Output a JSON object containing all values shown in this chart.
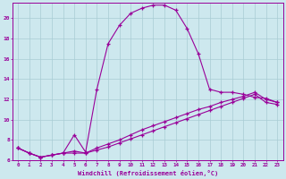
{
  "xlabel": "Windchill (Refroidissement éolien,°C)",
  "bg_color": "#cde8ee",
  "grid_color": "#a8ccd4",
  "line_color": "#990099",
  "xlim": [
    -0.5,
    23.5
  ],
  "ylim": [
    6,
    21.5
  ],
  "yticks": [
    6,
    8,
    10,
    12,
    14,
    16,
    18,
    20
  ],
  "xticks": [
    0,
    1,
    2,
    3,
    4,
    5,
    6,
    7,
    8,
    9,
    10,
    11,
    12,
    13,
    14,
    15,
    16,
    17,
    18,
    19,
    20,
    21,
    22,
    23
  ],
  "curve1_x": [
    0,
    1,
    2,
    3,
    4,
    5,
    6,
    7,
    8,
    9,
    10,
    11,
    12,
    13,
    14,
    15,
    16,
    17,
    18,
    19,
    20,
    21,
    22,
    23
  ],
  "curve1_y": [
    7.2,
    6.7,
    6.3,
    6.5,
    6.7,
    6.7,
    6.7,
    7.0,
    7.3,
    7.7,
    8.1,
    8.5,
    8.9,
    9.3,
    9.7,
    10.1,
    10.5,
    10.9,
    11.3,
    11.7,
    12.1,
    12.5,
    11.7,
    11.5
  ],
  "curve2_x": [
    0,
    1,
    2,
    3,
    4,
    5,
    6,
    7,
    8,
    9,
    10,
    11,
    12,
    13,
    14,
    15,
    16,
    17,
    18,
    19,
    20,
    21,
    22,
    23
  ],
  "curve2_y": [
    7.2,
    6.7,
    6.3,
    6.5,
    6.7,
    6.9,
    6.7,
    7.2,
    7.6,
    8.0,
    8.5,
    9.0,
    9.4,
    9.8,
    10.2,
    10.6,
    11.0,
    11.3,
    11.7,
    12.0,
    12.3,
    12.7,
    12.0,
    11.7
  ],
  "curve3_x": [
    0,
    1,
    2,
    3,
    4,
    5,
    6,
    7,
    8,
    9,
    10,
    11,
    12,
    13,
    14,
    15,
    16,
    17,
    18,
    19,
    20,
    21,
    22,
    23
  ],
  "curve3_y": [
    7.2,
    6.7,
    6.3,
    6.5,
    6.7,
    8.5,
    6.8,
    13.0,
    17.5,
    19.3,
    20.5,
    21.0,
    21.3,
    21.3,
    20.8,
    19.0,
    16.5,
    13.0,
    12.7,
    12.7,
    12.5,
    12.2,
    12.1,
    11.7
  ]
}
